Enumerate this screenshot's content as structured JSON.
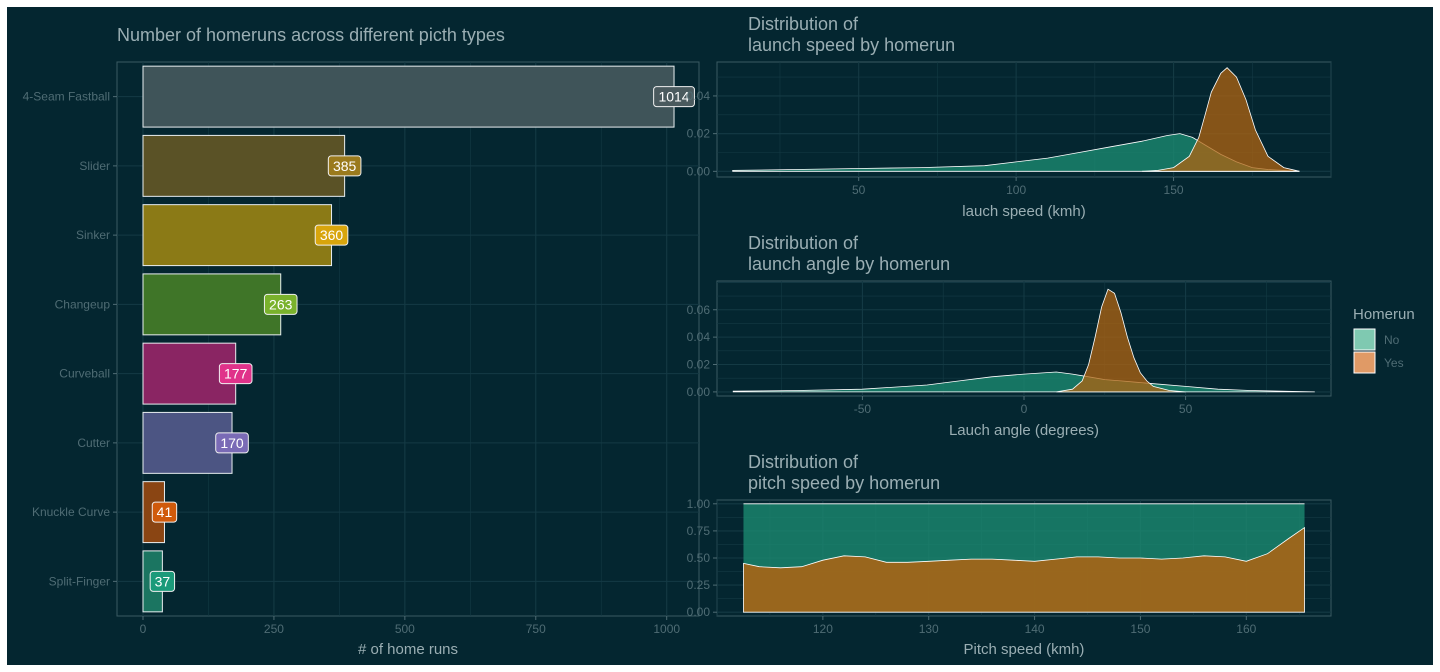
{
  "colors": {
    "background": "#042630",
    "grid": "#143a44",
    "axis_text": "#4f6c74",
    "label_text": "#9aaeb3",
    "panel_border": "#3a5a62",
    "density_no": "#1b8a70",
    "density_yes": "#b06410",
    "legend_no": "#7fc9b1",
    "legend_yes": "#e09a66"
  },
  "chart_data": [
    {
      "type": "bar",
      "orientation": "horizontal",
      "title": "Number of homeruns across different picth types",
      "xlabel": "# of home runs",
      "ylabel": "",
      "xlim": [
        0,
        1050
      ],
      "xticks": [
        0,
        250,
        500,
        750,
        1000
      ],
      "grid": true,
      "categories": [
        "4-Seam Fastball",
        "Slider",
        "Sinker",
        "Changeup",
        "Curveball",
        "Cutter",
        "Knuckle Curve",
        "Split-Finger"
      ],
      "values": [
        1014,
        385,
        360,
        263,
        177,
        170,
        41,
        37
      ],
      "bar_colors": [
        "#3f5459",
        "#5a5226",
        "#8b7a16",
        "#3f7528",
        "#8a2563",
        "#4c5583",
        "#8a4513",
        "#1b7561"
      ],
      "label_colors": [
        "#4a5a5e",
        "#9a7a1d",
        "#d8a50c",
        "#7ab22c",
        "#e0328a",
        "#7a6bb6",
        "#d05a0b",
        "#1b9a7a"
      ]
    },
    {
      "type": "area",
      "title": "Distribution of\nlaunch speed by homerun",
      "xlabel": "lauch speed (kmh)",
      "ylabel": "",
      "xlim": [
        5,
        200
      ],
      "ylim": [
        -0.003,
        0.058
      ],
      "xticks": [
        50,
        100,
        150
      ],
      "yticks": [
        0.0,
        0.02,
        0.04
      ],
      "ytick_labels": [
        "0.00",
        "0.02",
        "0.04"
      ],
      "grid": true,
      "series": [
        {
          "name": "No",
          "x": [
            10,
            30,
            50,
            70,
            90,
            100,
            110,
            120,
            130,
            140,
            148,
            152,
            156,
            160,
            165,
            170,
            175,
            180,
            190
          ],
          "y": [
            0.0005,
            0.001,
            0.0015,
            0.002,
            0.003,
            0.005,
            0.007,
            0.01,
            0.013,
            0.016,
            0.019,
            0.02,
            0.018,
            0.014,
            0.009,
            0.005,
            0.002,
            0.001,
            0.0
          ]
        },
        {
          "name": "Yes",
          "x": [
            140,
            145,
            150,
            155,
            158,
            160,
            162,
            165,
            167,
            170,
            173,
            176,
            180,
            185,
            190
          ],
          "y": [
            0.0,
            0.0005,
            0.002,
            0.008,
            0.018,
            0.03,
            0.042,
            0.052,
            0.055,
            0.05,
            0.038,
            0.022,
            0.008,
            0.002,
            0.0
          ]
        }
      ]
    },
    {
      "type": "area",
      "title": "Distribution of\nlaunch angle by homerun",
      "xlabel": "Lauch angle (degrees)",
      "ylabel": "",
      "xlim": [
        -95,
        95
      ],
      "ylim": [
        -0.003,
        0.081
      ],
      "xticks": [
        -50,
        0,
        50
      ],
      "yticks": [
        0.0,
        0.02,
        0.04,
        0.06
      ],
      "ytick_labels": [
        "0.00",
        "0.02",
        "0.04",
        "0.06"
      ],
      "grid": true,
      "series": [
        {
          "name": "No",
          "x": [
            -90,
            -70,
            -50,
            -30,
            -20,
            -10,
            0,
            10,
            15,
            20,
            25,
            30,
            35,
            40,
            50,
            60,
            70,
            90
          ],
          "y": [
            0.0005,
            0.001,
            0.002,
            0.005,
            0.008,
            0.011,
            0.013,
            0.0145,
            0.013,
            0.011,
            0.009,
            0.008,
            0.007,
            0.006,
            0.004,
            0.002,
            0.001,
            0.0
          ]
        },
        {
          "name": "Yes",
          "x": [
            10,
            15,
            18,
            20,
            22,
            24,
            26,
            28,
            30,
            32,
            34,
            36,
            38,
            40,
            45,
            50
          ],
          "y": [
            0.0,
            0.002,
            0.008,
            0.02,
            0.04,
            0.062,
            0.075,
            0.072,
            0.058,
            0.04,
            0.025,
            0.014,
            0.008,
            0.004,
            0.001,
            0.0
          ]
        }
      ]
    },
    {
      "type": "area",
      "stacked": "fill",
      "title": "Distribution of\npitch speed by homerun",
      "xlabel": "Pitch speed (kmh)",
      "ylabel": "",
      "xlim": [
        110,
        168
      ],
      "ylim": [
        -0.035,
        1.035
      ],
      "xticks": [
        120,
        130,
        140,
        150,
        160
      ],
      "yticks": [
        0.0,
        0.25,
        0.5,
        0.75,
        1.0
      ],
      "ytick_labels": [
        "0.00",
        "0.25",
        "0.50",
        "0.75",
        "1.00"
      ],
      "grid": true,
      "series": [
        {
          "name": "Yes",
          "x": [
            112.5,
            114,
            116,
            118,
            120,
            122,
            124,
            126,
            128,
            130,
            132,
            134,
            136,
            138,
            140,
            142,
            144,
            146,
            148,
            150,
            152,
            154,
            156,
            158,
            160,
            162,
            163,
            164,
            165.5
          ],
          "y": [
            0.45,
            0.42,
            0.41,
            0.42,
            0.48,
            0.52,
            0.51,
            0.46,
            0.46,
            0.47,
            0.48,
            0.49,
            0.49,
            0.48,
            0.47,
            0.49,
            0.51,
            0.51,
            0.5,
            0.5,
            0.49,
            0.5,
            0.52,
            0.51,
            0.47,
            0.54,
            0.61,
            0.68,
            0.78
          ]
        }
      ]
    }
  ],
  "legend": {
    "title": "Homerun",
    "items": [
      {
        "label": "No",
        "color": "#7fc9b1"
      },
      {
        "label": "Yes",
        "color": "#e09a66"
      }
    ]
  }
}
